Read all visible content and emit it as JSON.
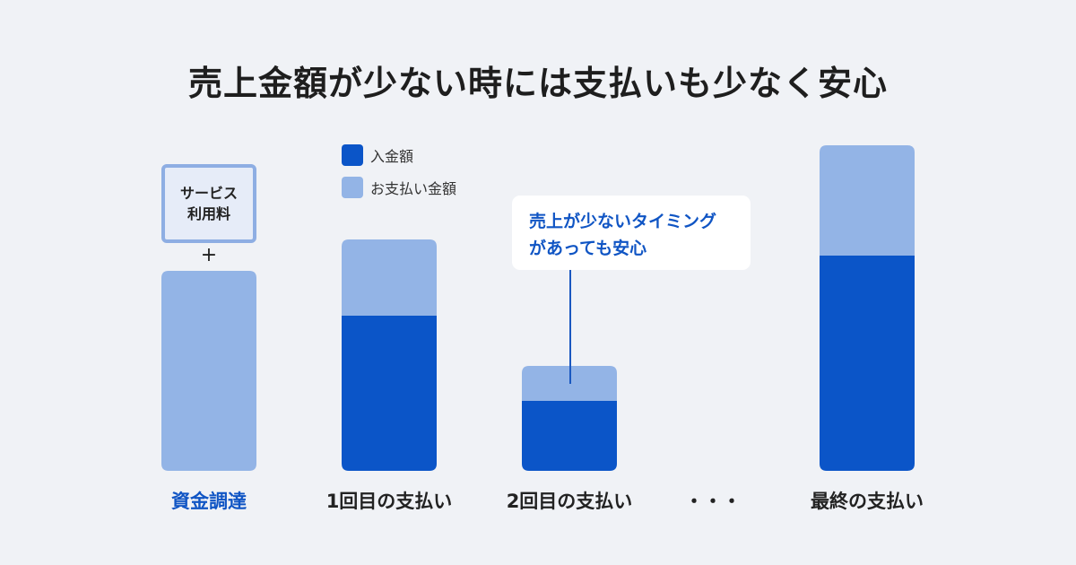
{
  "title": "売上金額が少ない時には支払いも少なく安心",
  "legend": {
    "deposit_label": "入金額",
    "payment_label": "お支払い金額"
  },
  "colors": {
    "deposit": "#0b55c8",
    "payment": "#93b4e6",
    "accent_text": "#1055c4",
    "background": "#f0f2f6"
  },
  "service_box": {
    "line1": "サービス",
    "line2": "利用料",
    "plus": "+"
  },
  "callout": {
    "line1": "売上が少ないタイミング",
    "line2": "があっても安心"
  },
  "chart_data": {
    "type": "bar",
    "stacked": true,
    "categories": [
      "資金調達",
      "1回目の支払い",
      "2回目の支払い",
      "・・・",
      "最終の支払い"
    ],
    "series": [
      {
        "name": "入金額",
        "values": [
          0,
          173,
          78,
          null,
          240
        ]
      },
      {
        "name": "お支払い金額",
        "values": [
          223,
          85,
          39,
          null,
          123
        ]
      }
    ],
    "xlabel": "",
    "ylabel": "",
    "ylim": [
      0,
      363
    ],
    "grid": false,
    "legend_position": "top"
  }
}
